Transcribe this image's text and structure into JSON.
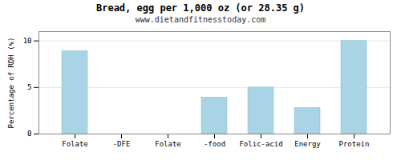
{
  "chart_data": {
    "type": "bar",
    "title": "Bread, egg per 1,000 oz (or 28.35 g)",
    "subtitle": "www.dietandfitnesstoday.com",
    "categories": [
      "Folate",
      "-DFE",
      "Folate",
      "-food",
      "Folic-acid",
      "Energy",
      "Protein"
    ],
    "values": [
      8.9,
      0.0,
      0.0,
      3.9,
      5.0,
      2.8,
      10.0
    ],
    "color": "#a8d4e6",
    "ylabel": "Percentage of RDH (%)",
    "ylim": [
      0,
      11
    ],
    "yticks": [
      0,
      5,
      10
    ],
    "grid": true
  }
}
